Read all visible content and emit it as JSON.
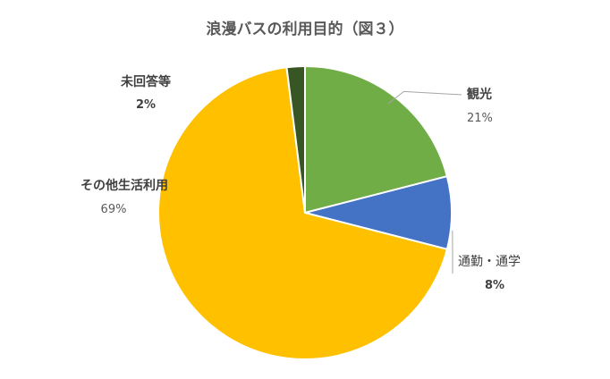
{
  "chart_data": {
    "type": "pie",
    "title": "浪漫バスの利用目的（図３）",
    "slices": [
      {
        "label": "観光",
        "value": 21,
        "value_label": "21%",
        "color": "#70ad47"
      },
      {
        "label": "通勤・通学",
        "value": 8,
        "value_label": "8%",
        "color": "#4472c4"
      },
      {
        "label": "その他生活利用",
        "value": 69,
        "value_label": "69%",
        "color": "#ffc000"
      },
      {
        "label": "未回答等",
        "value": 2,
        "value_label": "2%",
        "color": "#375623"
      }
    ],
    "start_angle_deg": 0,
    "direction": "clockwise",
    "legend": "none"
  }
}
